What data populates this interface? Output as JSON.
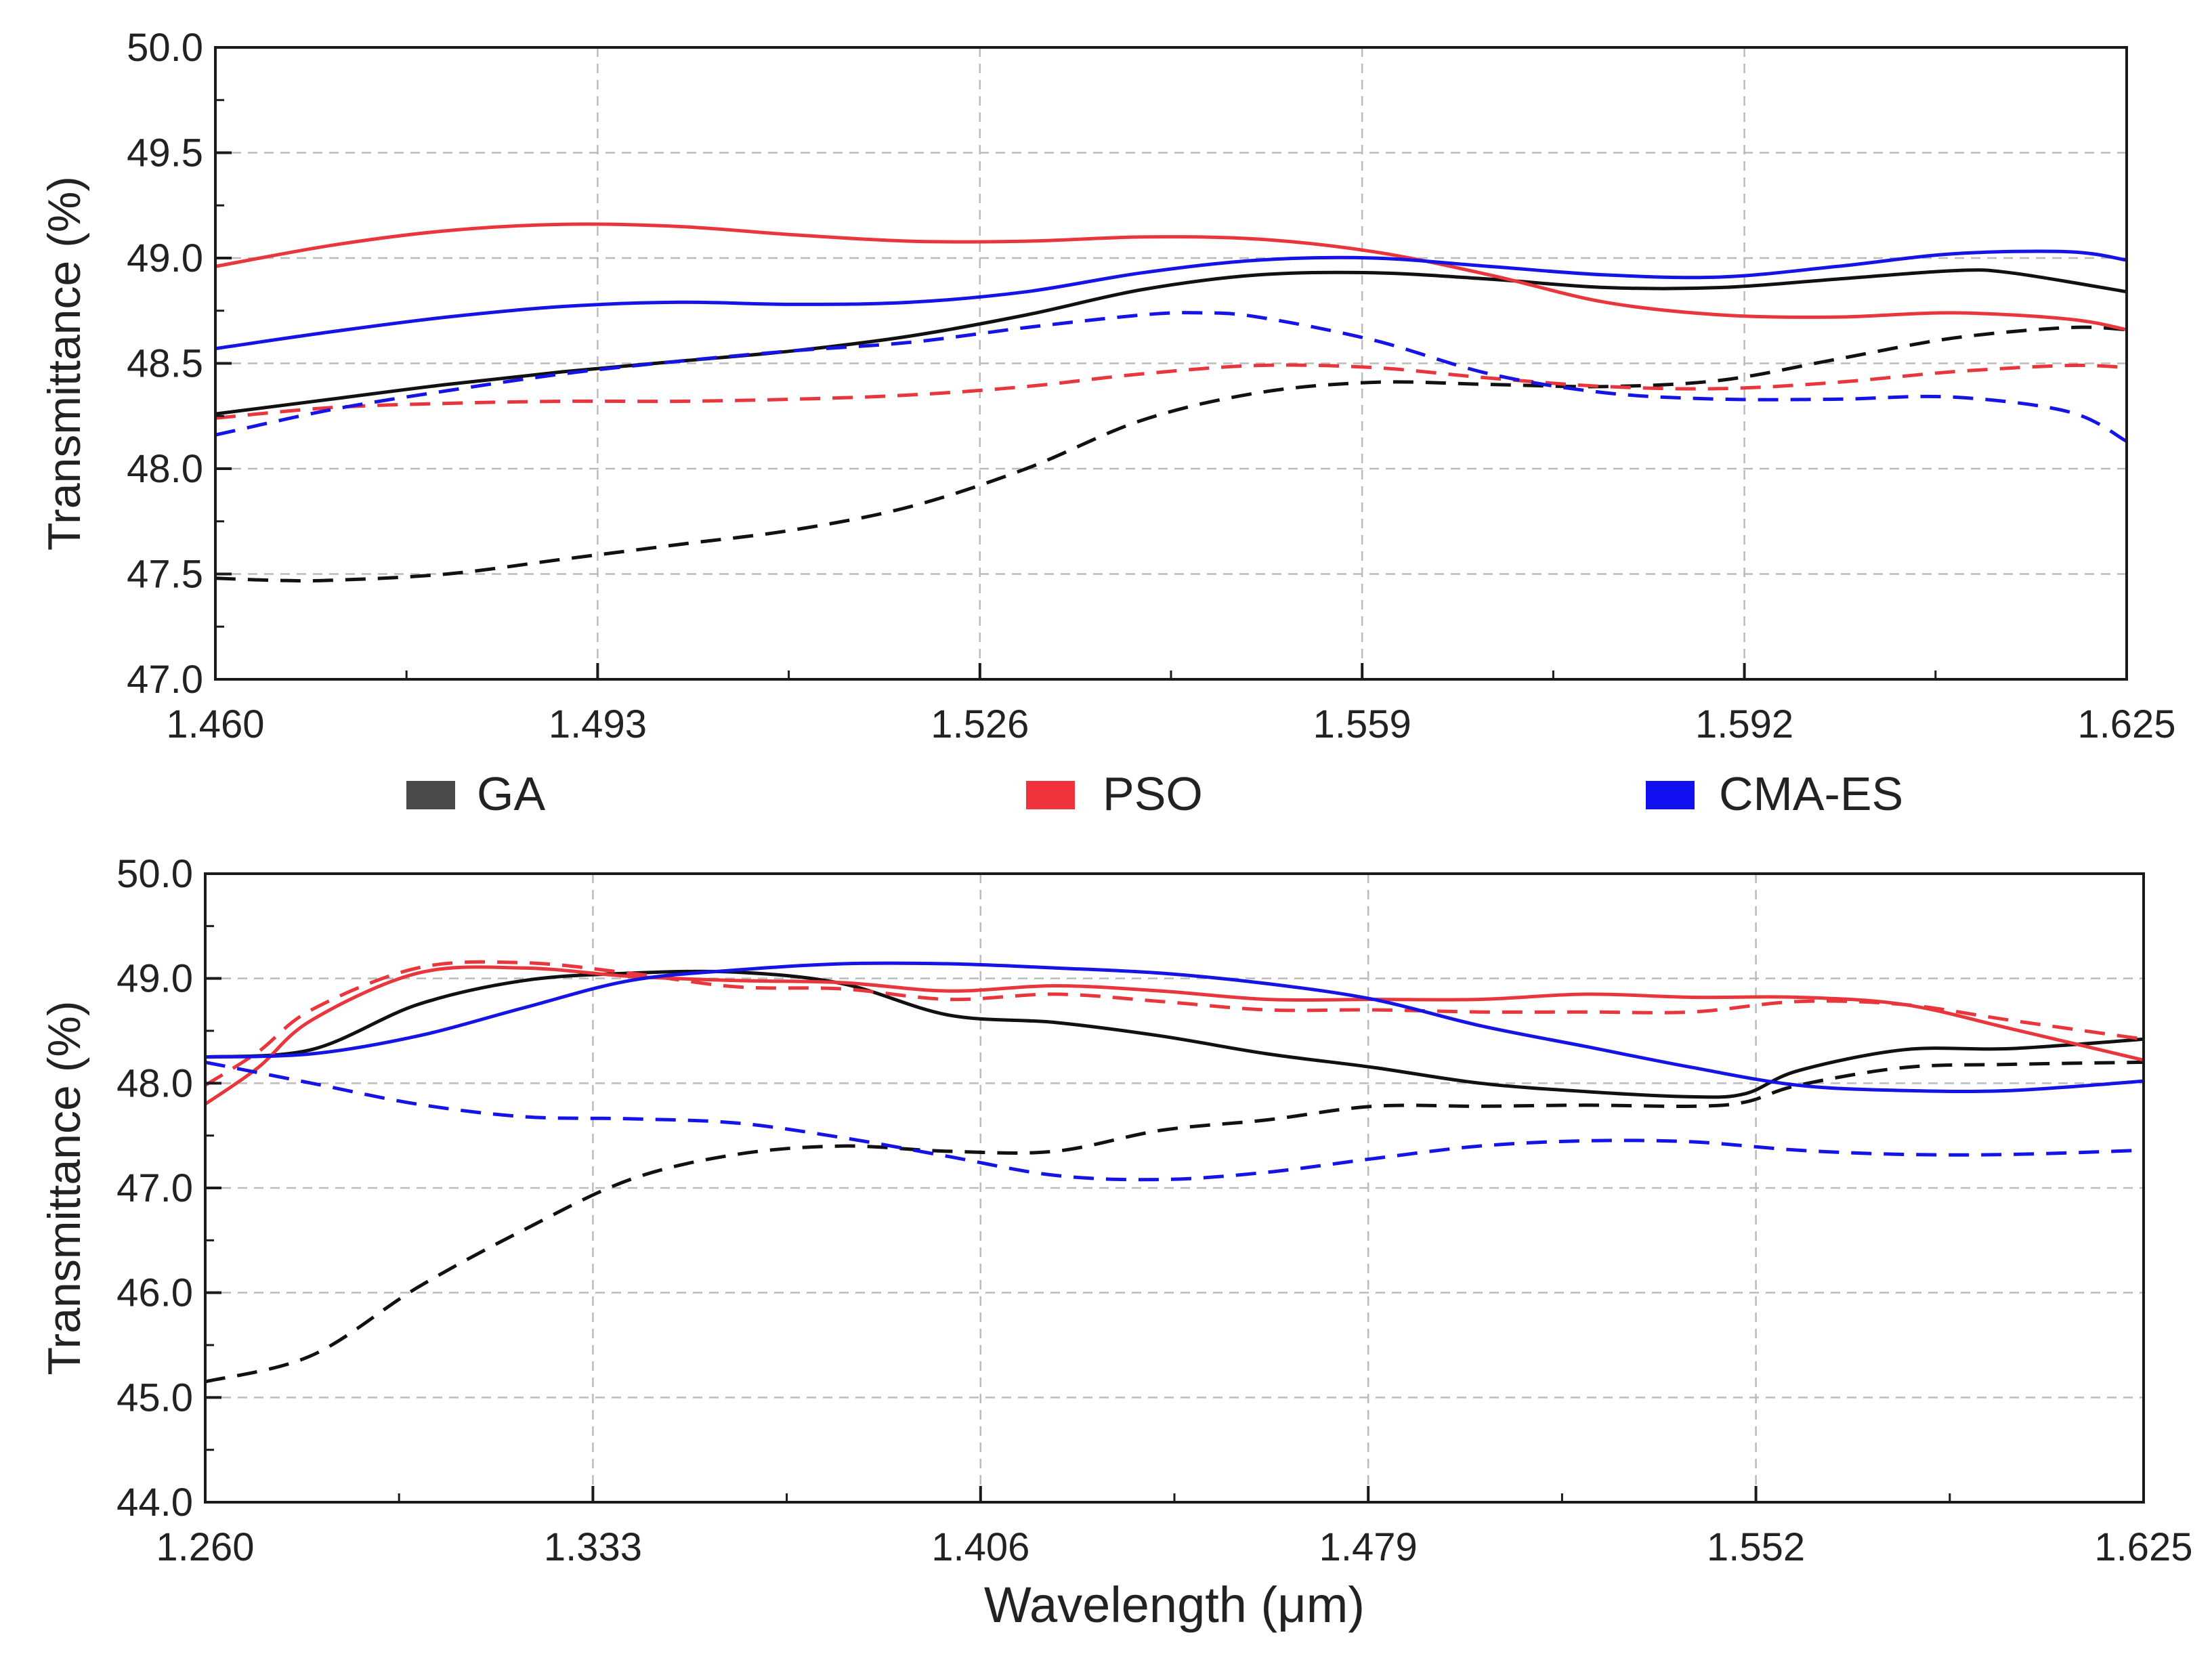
{
  "legend": {
    "placement": "between-panels",
    "entries": [
      {
        "label": "GA",
        "color": "#4a4a4a"
      },
      {
        "label": "PSO",
        "color": "#f0323c"
      },
      {
        "label": "CMA-ES",
        "color": "#1010f0"
      }
    ]
  },
  "colors": {
    "GA": "#111111",
    "PSO": "#e8363c",
    "CMA-ES": "#1414e6",
    "grid": "#bbbbbb"
  },
  "chart_data": [
    {
      "type": "line",
      "title": "",
      "xlabel": "",
      "ylabel": "Transmittance (%)",
      "xlim": [
        1.46,
        1.625
      ],
      "ylim": [
        47.0,
        50.0
      ],
      "xticks": [
        1.46,
        1.493,
        1.526,
        1.559,
        1.592,
        1.625
      ],
      "xtick_labels": [
        "1.460",
        "1.493",
        "1.526",
        "1.559",
        "1.592",
        "1.625"
      ],
      "yticks": [
        47.0,
        47.5,
        48.0,
        48.5,
        49.0,
        49.5,
        50.0
      ],
      "ytick_labels": [
        "47.0",
        "47.5",
        "48.0",
        "48.5",
        "49.0",
        "49.5",
        "50.0"
      ],
      "grid": true,
      "series": [
        {
          "key": "GA",
          "style": "solid",
          "x": [
            1.46,
            1.47,
            1.48,
            1.49,
            1.5,
            1.51,
            1.52,
            1.53,
            1.54,
            1.55,
            1.56,
            1.57,
            1.58,
            1.59,
            1.6,
            1.61,
            1.615,
            1.625
          ],
          "y": [
            48.26,
            48.33,
            48.4,
            48.46,
            48.51,
            48.56,
            48.63,
            48.73,
            48.85,
            48.92,
            48.93,
            48.9,
            48.86,
            48.86,
            48.9,
            48.94,
            48.93,
            48.84
          ]
        },
        {
          "key": "GA",
          "style": "dashed",
          "x": [
            1.46,
            1.465,
            1.47,
            1.48,
            1.49,
            1.5,
            1.51,
            1.52,
            1.53,
            1.54,
            1.55,
            1.56,
            1.57,
            1.58,
            1.59,
            1.6,
            1.61,
            1.62,
            1.625
          ],
          "y": [
            47.48,
            47.47,
            47.47,
            47.5,
            47.57,
            47.64,
            47.71,
            47.82,
            48.0,
            48.23,
            48.36,
            48.41,
            48.4,
            48.39,
            48.42,
            48.52,
            48.62,
            48.67,
            48.66
          ]
        },
        {
          "key": "PSO",
          "style": "solid",
          "x": [
            1.46,
            1.47,
            1.48,
            1.49,
            1.5,
            1.51,
            1.52,
            1.53,
            1.54,
            1.55,
            1.56,
            1.57,
            1.58,
            1.59,
            1.6,
            1.61,
            1.62,
            1.625
          ],
          "y": [
            48.96,
            49.06,
            49.13,
            49.16,
            49.15,
            49.11,
            49.08,
            49.08,
            49.1,
            49.09,
            49.03,
            48.92,
            48.79,
            48.73,
            48.72,
            48.74,
            48.71,
            48.66
          ]
        },
        {
          "key": "PSO",
          "style": "dashed",
          "x": [
            1.46,
            1.47,
            1.48,
            1.49,
            1.5,
            1.51,
            1.52,
            1.53,
            1.54,
            1.55,
            1.56,
            1.57,
            1.58,
            1.59,
            1.6,
            1.61,
            1.62,
            1.625
          ],
          "y": [
            48.24,
            48.29,
            48.31,
            48.32,
            48.32,
            48.33,
            48.35,
            48.39,
            48.45,
            48.49,
            48.48,
            48.43,
            48.39,
            48.38,
            48.41,
            48.46,
            48.49,
            48.48
          ]
        },
        {
          "key": "CMA-ES",
          "style": "solid",
          "x": [
            1.46,
            1.47,
            1.48,
            1.49,
            1.5,
            1.51,
            1.52,
            1.53,
            1.54,
            1.55,
            1.56,
            1.57,
            1.58,
            1.59,
            1.6,
            1.61,
            1.62,
            1.625
          ],
          "y": [
            48.57,
            48.65,
            48.72,
            48.77,
            48.79,
            48.78,
            48.79,
            48.84,
            48.93,
            48.99,
            49.0,
            48.96,
            48.92,
            48.91,
            48.96,
            49.02,
            49.03,
            48.99
          ]
        },
        {
          "key": "CMA-ES",
          "style": "dashed",
          "x": [
            1.46,
            1.47,
            1.48,
            1.49,
            1.5,
            1.51,
            1.52,
            1.53,
            1.54,
            1.545,
            1.55,
            1.56,
            1.57,
            1.58,
            1.59,
            1.6,
            1.61,
            1.62,
            1.625
          ],
          "y": [
            48.16,
            48.28,
            48.37,
            48.45,
            48.51,
            48.56,
            48.6,
            48.67,
            48.73,
            48.74,
            48.72,
            48.61,
            48.45,
            48.36,
            48.33,
            48.33,
            48.34,
            48.27,
            48.13
          ]
        }
      ]
    },
    {
      "type": "line",
      "title": "",
      "xlabel": "Wavelength (μm)",
      "ylabel": "Transmittance (%)",
      "xlim": [
        1.26,
        1.625
      ],
      "ylim": [
        44.0,
        50.0
      ],
      "xticks": [
        1.26,
        1.333,
        1.406,
        1.479,
        1.552,
        1.625
      ],
      "xtick_labels": [
        "1.260",
        "1.333",
        "1.406",
        "1.479",
        "1.552",
        "1.625"
      ],
      "yticks": [
        44.0,
        45.0,
        46.0,
        47.0,
        48.0,
        49.0,
        50.0
      ],
      "ytick_labels": [
        "44.0",
        "45.0",
        "46.0",
        "47.0",
        "48.0",
        "49.0",
        "50.0"
      ],
      "grid": true,
      "series": [
        {
          "key": "GA",
          "style": "solid",
          "x": [
            1.26,
            1.28,
            1.3,
            1.32,
            1.34,
            1.36,
            1.38,
            1.4,
            1.42,
            1.44,
            1.46,
            1.48,
            1.5,
            1.52,
            1.54,
            1.55,
            1.56,
            1.58,
            1.6,
            1.625
          ],
          "y": [
            48.25,
            48.32,
            48.75,
            48.98,
            49.05,
            49.06,
            48.95,
            48.65,
            48.58,
            48.45,
            48.28,
            48.15,
            48.0,
            47.92,
            47.87,
            47.9,
            48.12,
            48.32,
            48.33,
            48.42
          ]
        },
        {
          "key": "GA",
          "style": "dashed",
          "x": [
            1.26,
            1.28,
            1.3,
            1.32,
            1.34,
            1.36,
            1.38,
            1.4,
            1.42,
            1.44,
            1.46,
            1.48,
            1.5,
            1.52,
            1.54,
            1.55,
            1.56,
            1.58,
            1.6,
            1.625
          ],
          "y": [
            45.15,
            45.4,
            46.05,
            46.6,
            47.08,
            47.32,
            47.4,
            47.35,
            47.35,
            47.55,
            47.65,
            47.78,
            47.78,
            47.79,
            47.78,
            47.82,
            47.98,
            48.15,
            48.18,
            48.2
          ]
        },
        {
          "key": "PSO",
          "style": "solid",
          "x": [
            1.26,
            1.27,
            1.28,
            1.3,
            1.32,
            1.34,
            1.36,
            1.38,
            1.4,
            1.42,
            1.44,
            1.46,
            1.48,
            1.5,
            1.52,
            1.54,
            1.56,
            1.58,
            1.6,
            1.625
          ],
          "y": [
            47.8,
            48.15,
            48.6,
            49.05,
            49.1,
            49.02,
            48.98,
            48.96,
            48.88,
            48.93,
            48.88,
            48.8,
            48.8,
            48.8,
            48.85,
            48.82,
            48.82,
            48.75,
            48.52,
            48.22
          ]
        },
        {
          "key": "PSO",
          "style": "dashed",
          "x": [
            1.26,
            1.27,
            1.28,
            1.3,
            1.32,
            1.34,
            1.36,
            1.38,
            1.4,
            1.42,
            1.44,
            1.46,
            1.48,
            1.5,
            1.52,
            1.54,
            1.56,
            1.58,
            1.6,
            1.625
          ],
          "y": [
            47.98,
            48.3,
            48.7,
            49.1,
            49.15,
            49.05,
            48.92,
            48.9,
            48.8,
            48.85,
            48.78,
            48.7,
            48.7,
            48.68,
            48.68,
            48.68,
            48.78,
            48.75,
            48.6,
            48.42
          ]
        },
        {
          "key": "CMA-ES",
          "style": "solid",
          "x": [
            1.26,
            1.28,
            1.3,
            1.32,
            1.34,
            1.36,
            1.38,
            1.4,
            1.42,
            1.44,
            1.46,
            1.48,
            1.5,
            1.52,
            1.54,
            1.56,
            1.58,
            1.6,
            1.625
          ],
          "y": [
            48.25,
            48.28,
            48.45,
            48.72,
            48.98,
            49.08,
            49.14,
            49.14,
            49.1,
            49.05,
            48.95,
            48.8,
            48.55,
            48.35,
            48.15,
            47.98,
            47.93,
            47.93,
            48.02
          ]
        },
        {
          "key": "CMA-ES",
          "style": "dashed",
          "x": [
            1.26,
            1.28,
            1.3,
            1.32,
            1.34,
            1.36,
            1.38,
            1.4,
            1.42,
            1.44,
            1.46,
            1.48,
            1.5,
            1.52,
            1.54,
            1.56,
            1.58,
            1.6,
            1.625
          ],
          "y": [
            48.2,
            48.0,
            47.8,
            47.68,
            47.66,
            47.62,
            47.48,
            47.3,
            47.12,
            47.08,
            47.15,
            47.28,
            47.4,
            47.45,
            47.44,
            47.36,
            47.32,
            47.32,
            47.36
          ]
        }
      ]
    }
  ]
}
